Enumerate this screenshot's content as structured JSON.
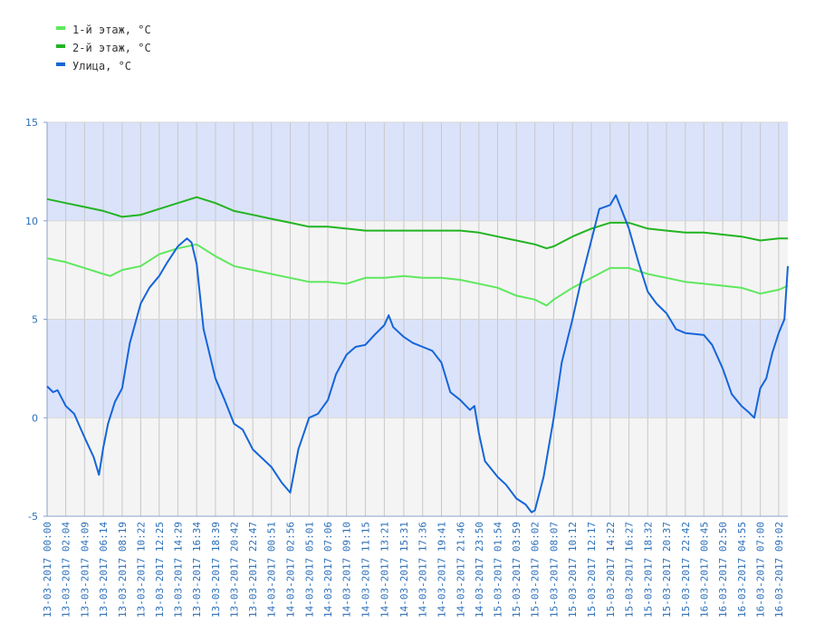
{
  "chart_data": {
    "type": "line",
    "title": "",
    "xlabel": "",
    "ylabel": "",
    "ylim": [
      -5,
      15
    ],
    "yticks": [
      -5,
      0,
      5,
      10,
      15
    ],
    "x_range": [
      "13-03-2017 00:00",
      "16-03-2017 10:03"
    ],
    "x_tick_labels": [
      "13-03-2017 00:00",
      "13-03-2017 02:04",
      "13-03-2017 04:09",
      "13-03-2017 06:14",
      "13-03-2017 08:19",
      "13-03-2017 10:22",
      "13-03-2017 12:25",
      "13-03-2017 14:29",
      "13-03-2017 16:34",
      "13-03-2017 18:39",
      "13-03-2017 20:42",
      "13-03-2017 22:47",
      "14-03-2017 00:51",
      "14-03-2017 02:56",
      "14-03-2017 05:01",
      "14-03-2017 07:06",
      "14-03-2017 09:10",
      "14-03-2017 11:15",
      "14-03-2017 13:21",
      "14-03-2017 15:31",
      "14-03-2017 17:36",
      "14-03-2017 19:41",
      "14-03-2017 21:46",
      "14-03-2017 23:50",
      "15-03-2017 01:54",
      "15-03-2017 03:59",
      "15-03-2017 06:02",
      "15-03-2017 08:07",
      "15-03-2017 10:12",
      "15-03-2017 12:17",
      "15-03-2017 14:22",
      "15-03-2017 16:27",
      "15-03-2017 18:32",
      "15-03-2017 20:37",
      "15-03-2017 22:42",
      "16-03-2017 00:45",
      "16-03-2017 02:50",
      "16-03-2017 04:55",
      "16-03-2017 07:00",
      "16-03-2017 09:02"
    ],
    "legend_position": "top-left",
    "grid": true,
    "series": [
      {
        "name": "1-й этаж, °C",
        "color": "#5ee85e",
        "points": [
          [
            "13-03-2017 00:00",
            8.1
          ],
          [
            "13-03-2017 02:04",
            7.9
          ],
          [
            "13-03-2017 04:09",
            7.6
          ],
          [
            "13-03-2017 06:14",
            7.3
          ],
          [
            "13-03-2017 07:00",
            7.2
          ],
          [
            "13-03-2017 08:19",
            7.5
          ],
          [
            "13-03-2017 10:22",
            7.7
          ],
          [
            "13-03-2017 12:25",
            8.3
          ],
          [
            "13-03-2017 14:29",
            8.6
          ],
          [
            "13-03-2017 16:34",
            8.8
          ],
          [
            "13-03-2017 18:39",
            8.2
          ],
          [
            "13-03-2017 20:42",
            7.7
          ],
          [
            "13-03-2017 22:47",
            7.5
          ],
          [
            "14-03-2017 00:51",
            7.3
          ],
          [
            "14-03-2017 02:56",
            7.1
          ],
          [
            "14-03-2017 05:01",
            6.9
          ],
          [
            "14-03-2017 07:06",
            6.9
          ],
          [
            "14-03-2017 09:10",
            6.8
          ],
          [
            "14-03-2017 11:15",
            7.1
          ],
          [
            "14-03-2017 13:21",
            7.1
          ],
          [
            "14-03-2017 15:31",
            7.2
          ],
          [
            "14-03-2017 17:36",
            7.1
          ],
          [
            "14-03-2017 19:41",
            7.1
          ],
          [
            "14-03-2017 21:46",
            7.0
          ],
          [
            "14-03-2017 23:50",
            6.8
          ],
          [
            "15-03-2017 01:54",
            6.6
          ],
          [
            "15-03-2017 03:59",
            6.2
          ],
          [
            "15-03-2017 06:02",
            6.0
          ],
          [
            "15-03-2017 07:20",
            5.7
          ],
          [
            "15-03-2017 08:07",
            6.0
          ],
          [
            "15-03-2017 10:12",
            6.6
          ],
          [
            "15-03-2017 12:17",
            7.1
          ],
          [
            "15-03-2017 14:22",
            7.6
          ],
          [
            "15-03-2017 16:27",
            7.6
          ],
          [
            "15-03-2017 18:32",
            7.3
          ],
          [
            "15-03-2017 20:37",
            7.1
          ],
          [
            "15-03-2017 22:42",
            6.9
          ],
          [
            "16-03-2017 00:45",
            6.8
          ],
          [
            "16-03-2017 02:50",
            6.7
          ],
          [
            "16-03-2017 04:55",
            6.6
          ],
          [
            "16-03-2017 07:00",
            6.3
          ],
          [
            "16-03-2017 09:02",
            6.5
          ],
          [
            "16-03-2017 10:03",
            6.7
          ]
        ]
      },
      {
        "name": "2-й этаж, °C",
        "color": "#22b422",
        "points": [
          [
            "13-03-2017 00:00",
            11.1
          ],
          [
            "13-03-2017 02:04",
            10.9
          ],
          [
            "13-03-2017 04:09",
            10.7
          ],
          [
            "13-03-2017 06:14",
            10.5
          ],
          [
            "13-03-2017 08:19",
            10.2
          ],
          [
            "13-03-2017 10:22",
            10.3
          ],
          [
            "13-03-2017 12:25",
            10.6
          ],
          [
            "13-03-2017 14:29",
            10.9
          ],
          [
            "13-03-2017 16:34",
            11.2
          ],
          [
            "13-03-2017 18:39",
            10.9
          ],
          [
            "13-03-2017 20:42",
            10.5
          ],
          [
            "13-03-2017 22:47",
            10.3
          ],
          [
            "14-03-2017 00:51",
            10.1
          ],
          [
            "14-03-2017 02:56",
            9.9
          ],
          [
            "14-03-2017 05:01",
            9.7
          ],
          [
            "14-03-2017 07:06",
            9.7
          ],
          [
            "14-03-2017 09:10",
            9.6
          ],
          [
            "14-03-2017 11:15",
            9.5
          ],
          [
            "14-03-2017 13:21",
            9.5
          ],
          [
            "14-03-2017 15:31",
            9.5
          ],
          [
            "14-03-2017 17:36",
            9.5
          ],
          [
            "14-03-2017 19:41",
            9.5
          ],
          [
            "14-03-2017 21:46",
            9.5
          ],
          [
            "14-03-2017 23:50",
            9.4
          ],
          [
            "15-03-2017 01:54",
            9.2
          ],
          [
            "15-03-2017 03:59",
            9.0
          ],
          [
            "15-03-2017 06:02",
            8.8
          ],
          [
            "15-03-2017 07:20",
            8.6
          ],
          [
            "15-03-2017 08:07",
            8.7
          ],
          [
            "15-03-2017 10:12",
            9.2
          ],
          [
            "15-03-2017 12:17",
            9.6
          ],
          [
            "15-03-2017 14:22",
            9.9
          ],
          [
            "15-03-2017 16:27",
            9.9
          ],
          [
            "15-03-2017 18:32",
            9.6
          ],
          [
            "15-03-2017 20:37",
            9.5
          ],
          [
            "15-03-2017 22:42",
            9.4
          ],
          [
            "16-03-2017 00:45",
            9.4
          ],
          [
            "16-03-2017 02:50",
            9.3
          ],
          [
            "16-03-2017 04:55",
            9.2
          ],
          [
            "16-03-2017 07:00",
            9.0
          ],
          [
            "16-03-2017 09:02",
            9.1
          ],
          [
            "16-03-2017 10:03",
            9.1
          ]
        ]
      },
      {
        "name": "Улица, °C",
        "color": "#1565d8",
        "points": [
          [
            "13-03-2017 00:00",
            1.6
          ],
          [
            "13-03-2017 00:40",
            1.3
          ],
          [
            "13-03-2017 01:10",
            1.4
          ],
          [
            "13-03-2017 02:04",
            0.6
          ],
          [
            "13-03-2017 03:00",
            0.2
          ],
          [
            "13-03-2017 04:09",
            -1.0
          ],
          [
            "13-03-2017 05:10",
            -2.0
          ],
          [
            "13-03-2017 05:45",
            -2.9
          ],
          [
            "13-03-2017 06:14",
            -1.5
          ],
          [
            "13-03-2017 06:45",
            -0.3
          ],
          [
            "13-03-2017 07:30",
            0.8
          ],
          [
            "13-03-2017 08:19",
            1.5
          ],
          [
            "13-03-2017 09:10",
            3.8
          ],
          [
            "13-03-2017 10:22",
            5.8
          ],
          [
            "13-03-2017 11:20",
            6.6
          ],
          [
            "13-03-2017 12:25",
            7.2
          ],
          [
            "13-03-2017 13:20",
            7.9
          ],
          [
            "13-03-2017 14:29",
            8.7
          ],
          [
            "13-03-2017 15:30",
            9.1
          ],
          [
            "13-03-2017 16:00",
            8.9
          ],
          [
            "13-03-2017 16:34",
            7.8
          ],
          [
            "13-03-2017 17:20",
            4.5
          ],
          [
            "13-03-2017 18:39",
            2.0
          ],
          [
            "13-03-2017 19:40",
            0.9
          ],
          [
            "13-03-2017 20:42",
            -0.3
          ],
          [
            "13-03-2017 21:40",
            -0.6
          ],
          [
            "13-03-2017 22:47",
            -1.6
          ],
          [
            "14-03-2017 00:51",
            -2.5
          ],
          [
            "14-03-2017 02:00",
            -3.3
          ],
          [
            "14-03-2017 02:56",
            -3.8
          ],
          [
            "14-03-2017 03:50",
            -1.6
          ],
          [
            "14-03-2017 05:01",
            0.0
          ],
          [
            "14-03-2017 06:00",
            0.2
          ],
          [
            "14-03-2017 07:06",
            0.9
          ],
          [
            "14-03-2017 08:00",
            2.2
          ],
          [
            "14-03-2017 09:10",
            3.2
          ],
          [
            "14-03-2017 10:10",
            3.6
          ],
          [
            "14-03-2017 11:15",
            3.7
          ],
          [
            "14-03-2017 12:15",
            4.2
          ],
          [
            "14-03-2017 13:21",
            4.7
          ],
          [
            "14-03-2017 13:50",
            5.2
          ],
          [
            "14-03-2017 14:20",
            4.6
          ],
          [
            "14-03-2017 15:31",
            4.1
          ],
          [
            "14-03-2017 16:30",
            3.8
          ],
          [
            "14-03-2017 17:36",
            3.6
          ],
          [
            "14-03-2017 18:40",
            3.4
          ],
          [
            "14-03-2017 19:41",
            2.8
          ],
          [
            "14-03-2017 20:40",
            1.3
          ],
          [
            "14-03-2017 21:46",
            0.9
          ],
          [
            "14-03-2017 22:50",
            0.4
          ],
          [
            "14-03-2017 23:20",
            0.6
          ],
          [
            "14-03-2017 23:50",
            -0.8
          ],
          [
            "15-03-2017 00:30",
            -2.2
          ],
          [
            "15-03-2017 01:54",
            -3.0
          ],
          [
            "15-03-2017 02:50",
            -3.4
          ],
          [
            "15-03-2017 03:59",
            -4.1
          ],
          [
            "15-03-2017 05:00",
            -4.4
          ],
          [
            "15-03-2017 05:40",
            -4.8
          ],
          [
            "15-03-2017 06:02",
            -4.7
          ],
          [
            "15-03-2017 07:00",
            -3.0
          ],
          [
            "15-03-2017 08:07",
            0.0
          ],
          [
            "15-03-2017 09:00",
            2.8
          ],
          [
            "15-03-2017 10:12",
            5.0
          ],
          [
            "15-03-2017 11:10",
            7.0
          ],
          [
            "15-03-2017 12:17",
            9.0
          ],
          [
            "15-03-2017 13:10",
            10.6
          ],
          [
            "15-03-2017 14:22",
            10.8
          ],
          [
            "15-03-2017 15:00",
            11.3
          ],
          [
            "15-03-2017 16:27",
            9.6
          ],
          [
            "15-03-2017 17:30",
            7.9
          ],
          [
            "15-03-2017 18:32",
            6.4
          ],
          [
            "15-03-2017 19:30",
            5.8
          ],
          [
            "15-03-2017 20:37",
            5.3
          ],
          [
            "15-03-2017 21:40",
            4.5
          ],
          [
            "15-03-2017 22:42",
            4.3
          ],
          [
            "16-03-2017 00:45",
            4.2
          ],
          [
            "16-03-2017 01:40",
            3.7
          ],
          [
            "16-03-2017 02:50",
            2.5
          ],
          [
            "16-03-2017 03:50",
            1.2
          ],
          [
            "16-03-2017 04:55",
            0.6
          ],
          [
            "16-03-2017 05:40",
            0.3
          ],
          [
            "16-03-2017 06:20",
            0.0
          ],
          [
            "16-03-2017 07:00",
            1.5
          ],
          [
            "16-03-2017 07:40",
            2.0
          ],
          [
            "16-03-2017 08:20",
            3.3
          ],
          [
            "16-03-2017 09:02",
            4.3
          ],
          [
            "16-03-2017 09:40",
            5.0
          ],
          [
            "16-03-2017 10:03",
            7.7
          ]
        ]
      }
    ]
  }
}
